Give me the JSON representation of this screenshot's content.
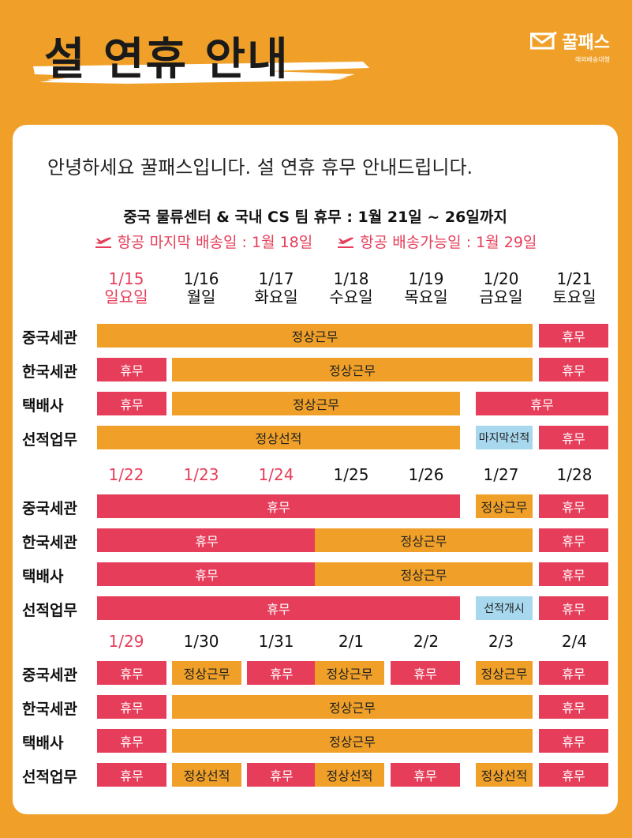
{
  "header": {
    "title": "설 연휴 안내"
  },
  "logo": {
    "name": "꿀패스",
    "sub": "해외배송대행",
    "icon": "paper-plane-envelope-icon"
  },
  "greeting": "안녕하세요 꿀패스입니다. 설 연휴 휴무 안내드립니다.",
  "notice": "중국 물류센터 & 국내 CS 팀 휴무 : 1월 21일 ~ 26일까지",
  "flights": [
    {
      "icon": "airplane-takeoff-icon",
      "text": "항공 마지막 배송일 : 1월 18일"
    },
    {
      "icon": "airplane-takeoff-icon",
      "text": "항공 배송가능일 : 1월 29일"
    }
  ],
  "colors": {
    "work": "#f0a028",
    "holiday": "#e63e5a",
    "special": "#a8d8ee",
    "red_date": "#e63e5a"
  },
  "weeks": [
    {
      "dates": [
        {
          "date": "1/15",
          "day": "일요일",
          "red": true
        },
        {
          "date": "1/16",
          "day": "월일",
          "red": false
        },
        {
          "date": "1/17",
          "day": "화요일",
          "red": false
        },
        {
          "date": "1/18",
          "day": "수요일",
          "red": false
        },
        {
          "date": "1/19",
          "day": "목요일",
          "red": false
        },
        {
          "date": "1/20",
          "day": "금요일",
          "red": false
        },
        {
          "date": "1/21",
          "day": "토요일",
          "red": false
        }
      ],
      "rows": [
        {
          "label": "중국세관",
          "bars": [
            {
              "start": 0,
              "span": 6,
              "type": "w",
              "text": "정상근무"
            },
            {
              "start": 6,
              "span": 1,
              "type": "h",
              "text": "휴무"
            }
          ]
        },
        {
          "label": "한국세관",
          "bars": [
            {
              "start": 0,
              "span": 1,
              "type": "h",
              "text": "휴무"
            },
            {
              "start": 1,
              "span": 5,
              "type": "w",
              "text": "정상근무"
            },
            {
              "start": 6,
              "span": 1,
              "type": "h",
              "text": "휴무"
            }
          ]
        },
        {
          "label": "택배사",
          "bars": [
            {
              "start": 0,
              "span": 1,
              "type": "h",
              "text": "휴무"
            },
            {
              "start": 1,
              "span": 4,
              "type": "w",
              "text": "정상근무"
            },
            {
              "start": 5,
              "span": 2,
              "type": "h",
              "text": "휴무"
            }
          ]
        },
        {
          "label": "선적업무",
          "bars": [
            {
              "start": 0,
              "span": 5,
              "type": "w",
              "text": "정상선적"
            },
            {
              "start": 5,
              "span": 1,
              "type": "b",
              "text": "마지막선적"
            },
            {
              "start": 6,
              "span": 1,
              "type": "h",
              "text": "휴무"
            }
          ]
        }
      ]
    },
    {
      "dates": [
        {
          "date": "1/22",
          "day": "",
          "red": true
        },
        {
          "date": "1/23",
          "day": "",
          "red": true
        },
        {
          "date": "1/24",
          "day": "",
          "red": true
        },
        {
          "date": "1/25",
          "day": "",
          "red": false
        },
        {
          "date": "1/26",
          "day": "",
          "red": false
        },
        {
          "date": "1/27",
          "day": "",
          "red": false
        },
        {
          "date": "1/28",
          "day": "",
          "red": false
        }
      ],
      "rows": [
        {
          "label": "중국세관",
          "bars": [
            {
              "start": 0,
              "span": 5,
              "type": "h",
              "text": "휴무"
            },
            {
              "start": 5,
              "span": 1,
              "type": "w",
              "text": "정상근무"
            },
            {
              "start": 6,
              "span": 1,
              "type": "h",
              "text": "휴무"
            }
          ]
        },
        {
          "label": "한국세관",
          "bars": [
            {
              "start": 0,
              "span": 3,
              "type": "h",
              "text": "휴무"
            },
            {
              "start": 3,
              "span": 3,
              "type": "w",
              "text": "정상근무"
            },
            {
              "start": 6,
              "span": 1,
              "type": "h",
              "text": "휴무"
            }
          ]
        },
        {
          "label": "택배사",
          "bars": [
            {
              "start": 0,
              "span": 3,
              "type": "h",
              "text": "휴무"
            },
            {
              "start": 3,
              "span": 3,
              "type": "w",
              "text": "정상근무"
            },
            {
              "start": 6,
              "span": 1,
              "type": "h",
              "text": "휴무"
            }
          ]
        },
        {
          "label": "선적업무",
          "bars": [
            {
              "start": 0,
              "span": 5,
              "type": "h",
              "text": "휴무"
            },
            {
              "start": 5,
              "span": 1,
              "type": "b",
              "text": "선적개시"
            },
            {
              "start": 6,
              "span": 1,
              "type": "h",
              "text": "휴무"
            }
          ]
        }
      ]
    },
    {
      "dates": [
        {
          "date": "1/29",
          "day": "",
          "red": true
        },
        {
          "date": "1/30",
          "day": "",
          "red": false
        },
        {
          "date": "1/31",
          "day": "",
          "red": false
        },
        {
          "date": "2/1",
          "day": "",
          "red": false
        },
        {
          "date": "2/2",
          "day": "",
          "red": false
        },
        {
          "date": "2/3",
          "day": "",
          "red": false
        },
        {
          "date": "2/4",
          "day": "",
          "red": false
        }
      ],
      "rows": [
        {
          "label": "중국세관",
          "bars": [
            {
              "start": 0,
              "span": 1,
              "type": "h",
              "text": "휴무"
            },
            {
              "start": 1,
              "span": 1,
              "type": "w",
              "text": "정상근무"
            },
            {
              "start": 2,
              "span": 1,
              "type": "h",
              "text": "휴무"
            },
            {
              "start": 3,
              "span": 1,
              "type": "w",
              "text": "정상근무"
            },
            {
              "start": 4,
              "span": 1,
              "type": "h",
              "text": "휴무"
            },
            {
              "start": 5,
              "span": 1,
              "type": "w",
              "text": "정상근무"
            },
            {
              "start": 6,
              "span": 1,
              "type": "h",
              "text": "휴무"
            }
          ]
        },
        {
          "label": "한국세관",
          "bars": [
            {
              "start": 0,
              "span": 1,
              "type": "h",
              "text": "휴무"
            },
            {
              "start": 1,
              "span": 5,
              "type": "w",
              "text": "정상근무"
            },
            {
              "start": 6,
              "span": 1,
              "type": "h",
              "text": "휴무"
            }
          ]
        },
        {
          "label": "택배사",
          "bars": [
            {
              "start": 0,
              "span": 1,
              "type": "h",
              "text": "휴무"
            },
            {
              "start": 1,
              "span": 5,
              "type": "w",
              "text": "정상근무"
            },
            {
              "start": 6,
              "span": 1,
              "type": "h",
              "text": "휴무"
            }
          ]
        },
        {
          "label": "선적업무",
          "bars": [
            {
              "start": 0,
              "span": 1,
              "type": "h",
              "text": "휴무"
            },
            {
              "start": 1,
              "span": 1,
              "type": "w",
              "text": "정상선적"
            },
            {
              "start": 2,
              "span": 1,
              "type": "h",
              "text": "휴무"
            },
            {
              "start": 3,
              "span": 1,
              "type": "w",
              "text": "정상선적"
            },
            {
              "start": 4,
              "span": 1,
              "type": "h",
              "text": "휴무"
            },
            {
              "start": 5,
              "span": 1,
              "type": "w",
              "text": "정상선적"
            },
            {
              "start": 6,
              "span": 1,
              "type": "h",
              "text": "휴무"
            }
          ]
        }
      ]
    }
  ]
}
